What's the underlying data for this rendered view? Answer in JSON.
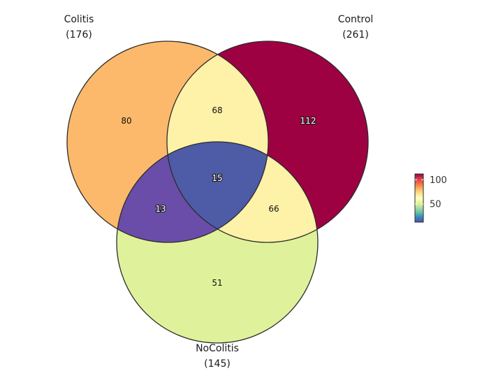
{
  "diagram": {
    "type": "venn3",
    "sets": [
      {
        "name": "Colitis",
        "total": "(176)"
      },
      {
        "name": "Control",
        "total": "(261)"
      },
      {
        "name": "NoColitis",
        "total": "(145)"
      }
    ],
    "regions": {
      "colitis_only": {
        "value": 80,
        "label": "80",
        "color": "#FDB96B"
      },
      "control_only": {
        "value": 112,
        "label": "112",
        "color": "#9E0142"
      },
      "nocolitis_only": {
        "value": 51,
        "label": "51",
        "color": "#DFF29B"
      },
      "colitis_control": {
        "value": 68,
        "label": "68",
        "color": "#FEF1A8"
      },
      "colitis_nocolitis": {
        "value": 13,
        "label": "13",
        "color": "#6A4DA8"
      },
      "control_nocolitis": {
        "value": 66,
        "label": "66",
        "color": "#FEF1A8"
      },
      "all_three": {
        "value": 15,
        "label": "15",
        "color": "#4E5BA6"
      }
    },
    "color_scale": {
      "palette": "Spectral",
      "stops": [
        "#5E4FA2",
        "#3288BD",
        "#66C2A5",
        "#ABDDA4",
        "#E6F598",
        "#FFFFBF",
        "#FEE08B",
        "#FDAE61",
        "#F46D43",
        "#D53E4F",
        "#9E0142"
      ],
      "ticks": [
        {
          "value": 100,
          "label": "100"
        },
        {
          "value": 50,
          "label": "50"
        }
      ],
      "range": [
        13,
        112
      ]
    }
  }
}
